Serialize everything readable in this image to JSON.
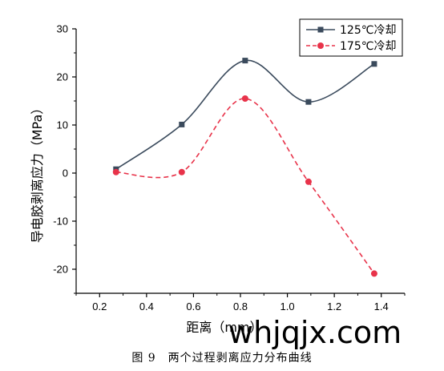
{
  "chart_data": {
    "type": "line",
    "title": "",
    "xlabel": "距离（mm）",
    "ylabel": "导电胶剥离应力（MPa）",
    "xlim": [
      0.1,
      1.5
    ],
    "ylim": [
      -25,
      30
    ],
    "xticks": [
      0.2,
      0.4,
      0.6,
      0.8,
      1.0,
      1.2,
      1.4
    ],
    "xtick_labels": [
      "0.2",
      "0.4",
      "0.6",
      "0.8",
      "1.0",
      "1.2",
      "1.4"
    ],
    "yticks": [
      30,
      20,
      10,
      0,
      -10,
      -20
    ],
    "ytick_labels": [
      "30",
      "20",
      "10",
      "0",
      "-10",
      "-20"
    ],
    "grid": false,
    "legend_position": "top-right",
    "series": [
      {
        "name": "125℃冷却",
        "color": "#3a4a5c",
        "marker": "square",
        "line_style": "solid",
        "x": [
          0.27,
          0.55,
          0.82,
          1.09,
          1.37
        ],
        "y": [
          0.8,
          10.1,
          23.4,
          14.8,
          22.7
        ]
      },
      {
        "name": "175℃冷却",
        "color": "#e8334a",
        "marker": "circle",
        "line_style": "dashed",
        "x": [
          0.27,
          0.55,
          0.82,
          1.09,
          1.37
        ],
        "y": [
          0.2,
          0.2,
          15.5,
          -1.8,
          -20.9
        ]
      }
    ]
  },
  "caption": "图 9　两个过程剥离应力分布曲线",
  "watermark": "whjqjx.com"
}
